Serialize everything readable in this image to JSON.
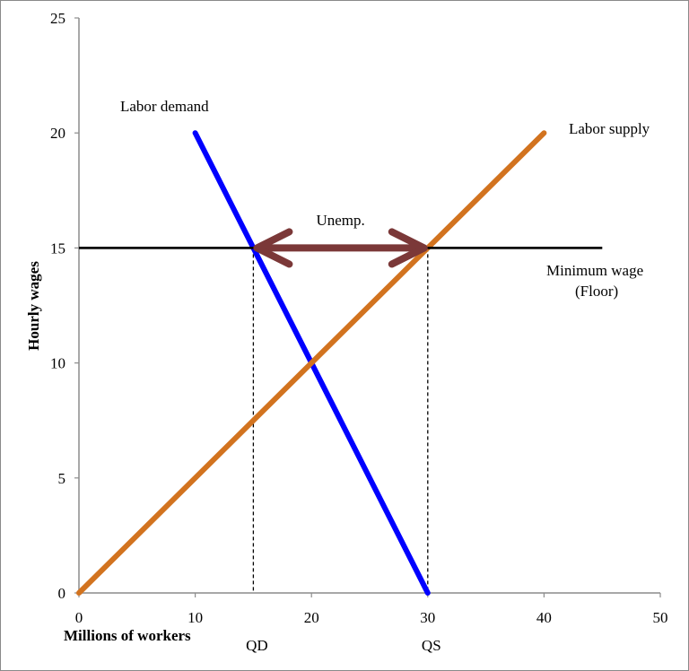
{
  "chart_data": {
    "type": "line",
    "xlabel": "Millions of workers",
    "ylabel": "Hourly wages",
    "xlim": [
      0,
      50
    ],
    "ylim": [
      0,
      25
    ],
    "x_ticks": [
      0,
      10,
      20,
      30,
      40,
      50
    ],
    "y_ticks": [
      0,
      5,
      10,
      15,
      20,
      25
    ],
    "grid": false,
    "series": [
      {
        "name": "Labor demand",
        "color": "#0000ff",
        "points": [
          [
            10,
            20
          ],
          [
            30,
            0
          ]
        ]
      },
      {
        "name": "Labor supply",
        "color": "#d2731f",
        "points": [
          [
            0,
            0
          ],
          [
            40,
            20
          ]
        ]
      },
      {
        "name": "Minimum wage",
        "name_line2": "(Floor)",
        "color": "#000000",
        "points": [
          [
            0,
            15
          ],
          [
            45,
            15
          ]
        ]
      }
    ],
    "annotations": {
      "unemployment": {
        "label": "Unemp.",
        "from": [
          15,
          15
        ],
        "to": [
          30,
          15
        ],
        "color": "#7b3838"
      },
      "qd": {
        "label": "QD",
        "x": 15
      },
      "qs": {
        "label": "QS",
        "x": 30
      }
    }
  }
}
